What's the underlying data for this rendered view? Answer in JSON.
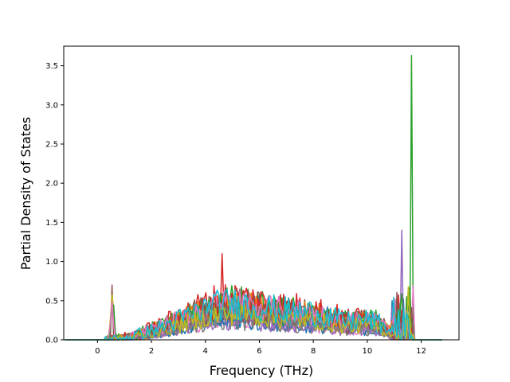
{
  "chart_data": {
    "type": "line",
    "title": "",
    "xlabel": "Frequency (THz)",
    "ylabel": "Partial Density of States",
    "xlim": [
      -1.25,
      13.4
    ],
    "ylim": [
      0,
      3.75
    ],
    "xticks": [
      0,
      2,
      4,
      6,
      8,
      10,
      12
    ],
    "yticks": [
      0.0,
      0.5,
      1.0,
      1.5,
      2.0,
      2.5,
      3.0,
      3.5
    ],
    "xtick_labels": [
      "0",
      "2",
      "4",
      "6",
      "8",
      "10",
      "12"
    ],
    "ytick_labels": [
      "0.0",
      "0.5",
      "1.0",
      "1.5",
      "2.0",
      "2.5",
      "3.0",
      "3.5"
    ],
    "grid": false,
    "legend": "none",
    "series_count": 20,
    "colors": [
      "#1f77b4",
      "#ff7f0e",
      "#2ca02c",
      "#d62728",
      "#9467bd",
      "#8c564b",
      "#e377c2",
      "#7f7f7f",
      "#bcbd22",
      "#17becf"
    ],
    "x_range_of_data": [
      -1.2,
      12.8
    ],
    "notes_peaks": [
      {
        "x": 0.55,
        "y": 0.7
      },
      {
        "x": 4.6,
        "y": 1.1
      },
      {
        "x": 11.3,
        "y": 1.4
      },
      {
        "x": 11.62,
        "y": 3.63
      }
    ]
  }
}
